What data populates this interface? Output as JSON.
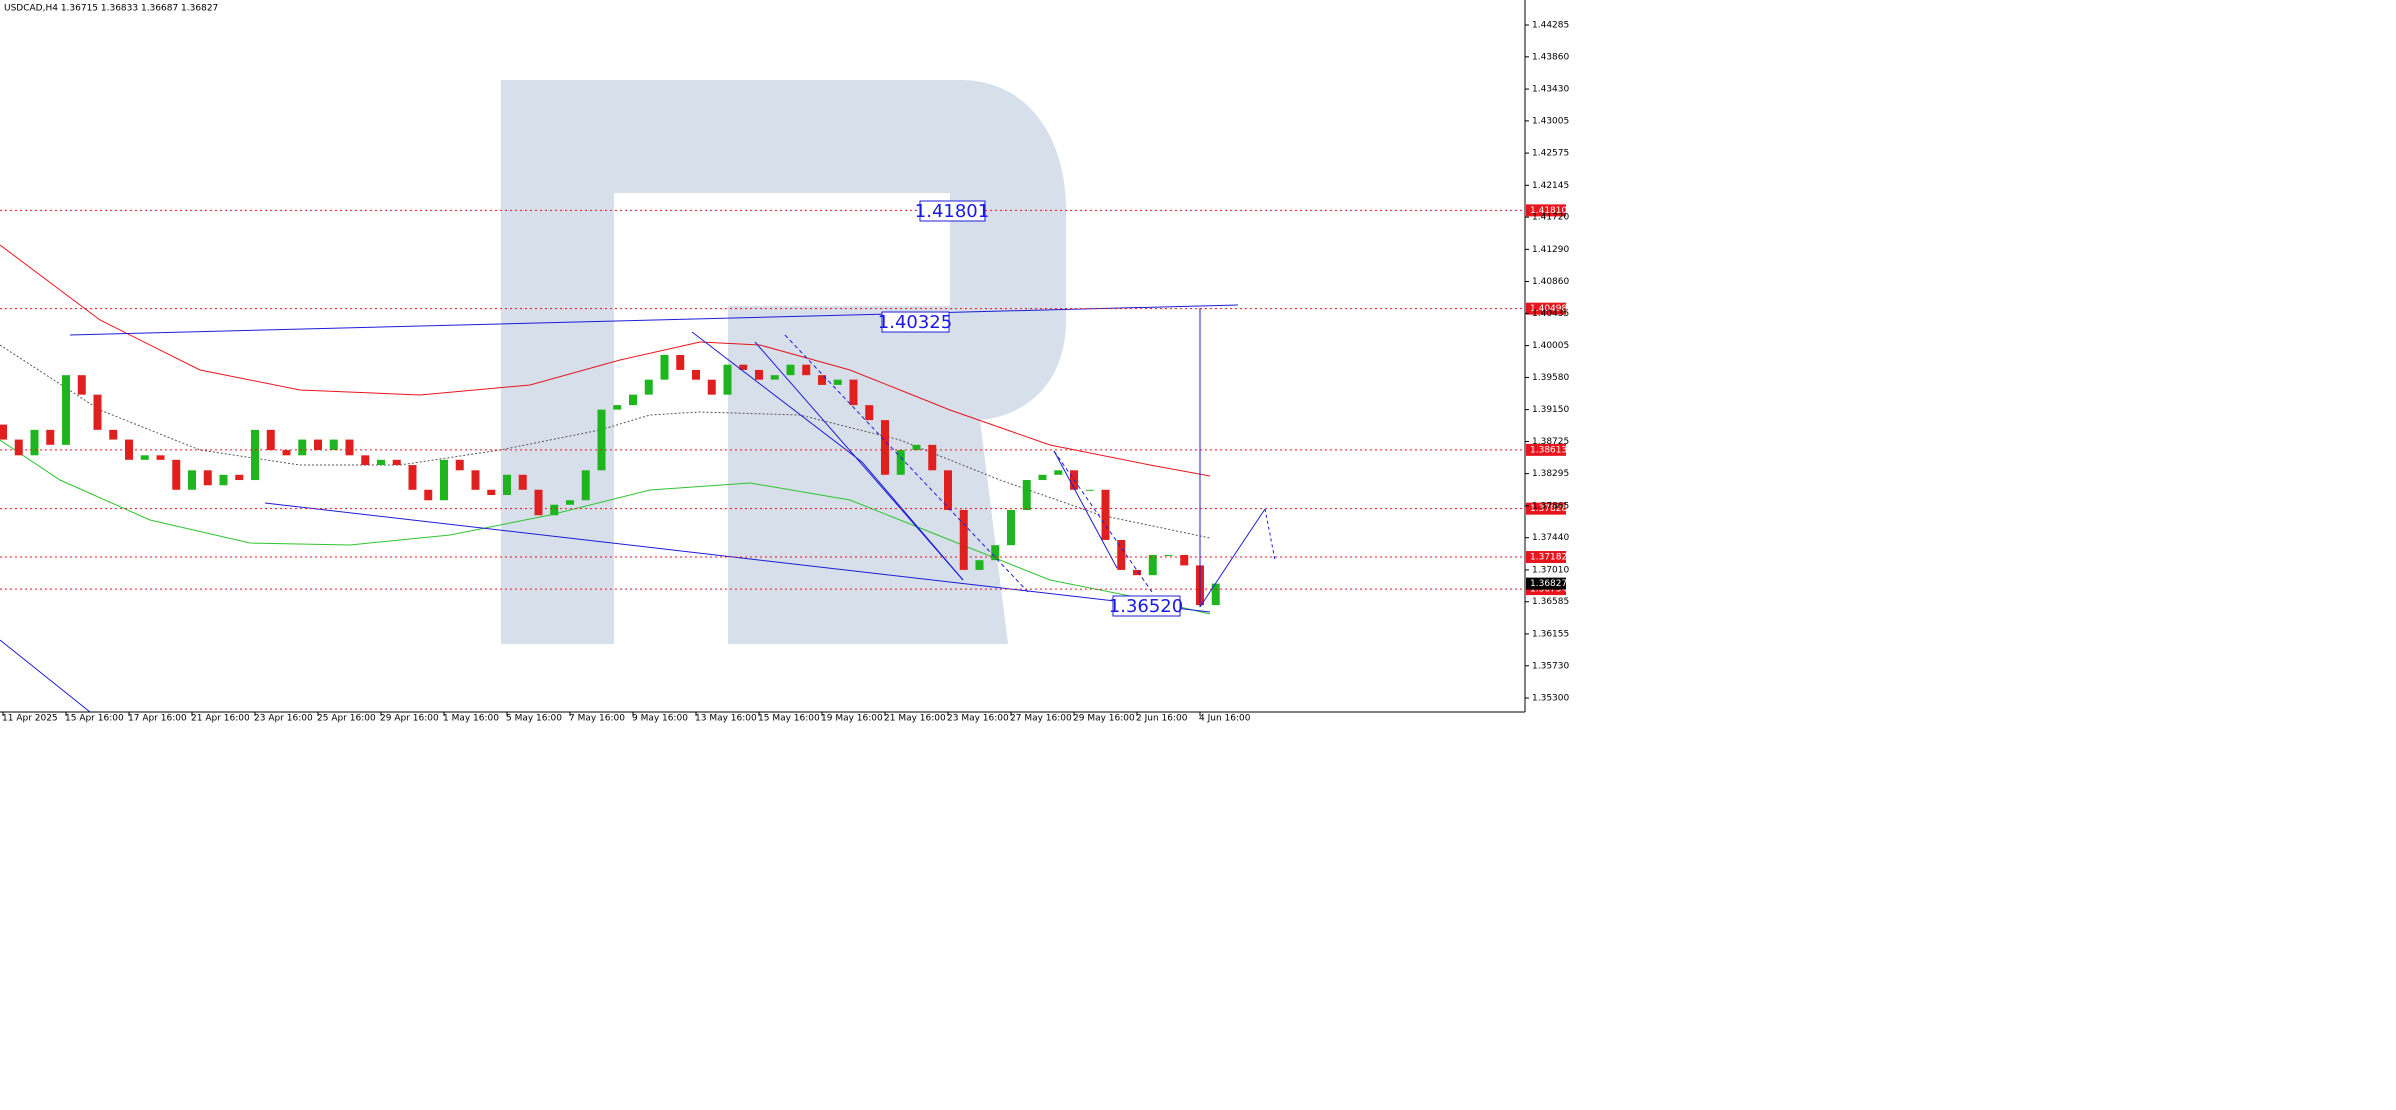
{
  "chart_data": {
    "type": "candlestick",
    "title": "USDCAD,H4  1.36715 1.36833 1.36687 1.36827",
    "categories": [
      "11 Apr 2025",
      null,
      null,
      null,
      "15 Apr 16:00",
      null,
      null,
      null,
      "17 Apr 16:00",
      null,
      null,
      null,
      "21 Apr 16:00",
      null,
      null,
      null,
      "23 Apr 16:00",
      null,
      null,
      null,
      "25 Apr 16:00",
      null,
      null,
      null,
      "29 Apr 16:00",
      null,
      null,
      null,
      "1 May 16:00",
      null,
      null,
      null,
      "5 May 16:00",
      null,
      null,
      null,
      "7 May 16:00",
      null,
      null,
      null,
      "9 May 16:00",
      null,
      null,
      null,
      "13 May 16:00",
      null,
      null,
      null,
      "15 May 16:00",
      null,
      null,
      null,
      "19 May 16:00",
      null,
      null,
      null,
      "21 May 16:00",
      null,
      null,
      null,
      "23 May 16:00",
      null,
      null,
      null,
      "27 May 16:00",
      null,
      null,
      null,
      "29 May 16:00",
      null,
      null,
      null,
      "2 Jun 16:00",
      null,
      null,
      null,
      "4 Jun 16:00",
      null
    ],
    "open": [
      1.3895,
      1.3875,
      1.3854,
      1.3888,
      1.3868,
      1.3961,
      1.3935,
      1.3888,
      1.3875,
      1.3848,
      1.3854,
      1.3848,
      1.3808,
      1.3834,
      1.3814,
      1.3828,
      1.3821,
      1.3888,
      1.3861,
      1.3854,
      1.3875,
      1.3861,
      1.3875,
      1.3854,
      1.3841,
      1.3848,
      1.3841,
      1.3808,
      1.3794,
      1.3848,
      1.3834,
      1.3808,
      1.3801,
      1.3828,
      1.3808,
      1.3774,
      1.3788,
      1.3794,
      1.3834,
      1.3915,
      1.3921,
      1.3935,
      1.3955,
      1.3988,
      1.3968,
      1.3955,
      1.3935,
      1.3975,
      1.3968,
      1.3955,
      1.3961,
      1.3975,
      1.3961,
      1.3948,
      1.3955,
      1.3921,
      1.3901,
      1.3828,
      1.3861,
      1.3868,
      1.3834,
      1.3781,
      1.3701,
      1.3714,
      1.3734,
      1.3781,
      1.3821,
      1.3828,
      1.3834,
      1.3808,
      1.3808,
      1.3741,
      1.3701,
      1.3694,
      1.3721,
      1.3721,
      1.3707,
      1.3654
    ],
    "close": [
      1.3875,
      1.3854,
      1.3888,
      1.3868,
      1.3961,
      1.3935,
      1.3888,
      1.3875,
      1.3848,
      1.3854,
      1.3848,
      1.3808,
      1.3834,
      1.3814,
      1.3828,
      1.3821,
      1.3888,
      1.3861,
      1.3854,
      1.3875,
      1.3861,
      1.3875,
      1.3854,
      1.3841,
      1.3848,
      1.3841,
      1.3808,
      1.3794,
      1.3848,
      1.3834,
      1.3808,
      1.3801,
      1.3828,
      1.3808,
      1.3774,
      1.3788,
      1.3794,
      1.3834,
      1.3915,
      1.3921,
      1.3935,
      1.3955,
      1.3988,
      1.3968,
      1.3955,
      1.3935,
      1.3975,
      1.3968,
      1.3955,
      1.3961,
      1.3975,
      1.3961,
      1.3948,
      1.3955,
      1.3921,
      1.3901,
      1.3828,
      1.3861,
      1.3868,
      1.3834,
      1.3781,
      1.3701,
      1.3714,
      1.3734,
      1.3781,
      1.3821,
      1.3828,
      1.3834,
      1.3808,
      1.3808,
      1.3741,
      1.3701,
      1.3694,
      1.3721,
      1.3721,
      1.3707,
      1.3654,
      1.36827
    ],
    "up_color": "#1fb51f",
    "down_color": "#e0201e",
    "ylim": [
      1.35113,
      1.44619
    ],
    "yticks": [
      1.44285,
      {
        "value": 1.4386,
        "label": "1.43860"
      },
      {
        "value": 1.4343,
        "label": "1.43430"
      },
      1.43005,
      1.42575,
      1.42145,
      {
        "value": 1.4172,
        "label": "1.41720"
      },
      {
        "value": 1.4129,
        "label": "1.41290"
      },
      {
        "value": 1.4086,
        "label": "1.40860"
      },
      1.40435,
      1.40005,
      {
        "value": 1.3958,
        "label": "1.39580"
      },
      {
        "value": 1.3915,
        "label": "1.39150"
      },
      1.38725,
      1.38295,
      1.37865,
      {
        "value": 1.3744,
        "label": "1.37440"
      },
      {
        "value": 1.3701,
        "label": "1.37010"
      },
      1.36585,
      1.36155,
      {
        "value": 1.3573,
        "label": "1.35730"
      },
      {
        "value": 1.353,
        "label": "1.35300"
      }
    ],
    "levels": [
      {
        "value": 1.4181,
        "label": "1.41810"
      },
      1.40498,
      1.38613,
      1.37828,
      1.37182,
      1.36754
    ],
    "level_color": "#e8141e",
    "current_price": 1.36827,
    "annotations": [
      "1.41801",
      "1.40325",
      "1.36520"
    ]
  }
}
